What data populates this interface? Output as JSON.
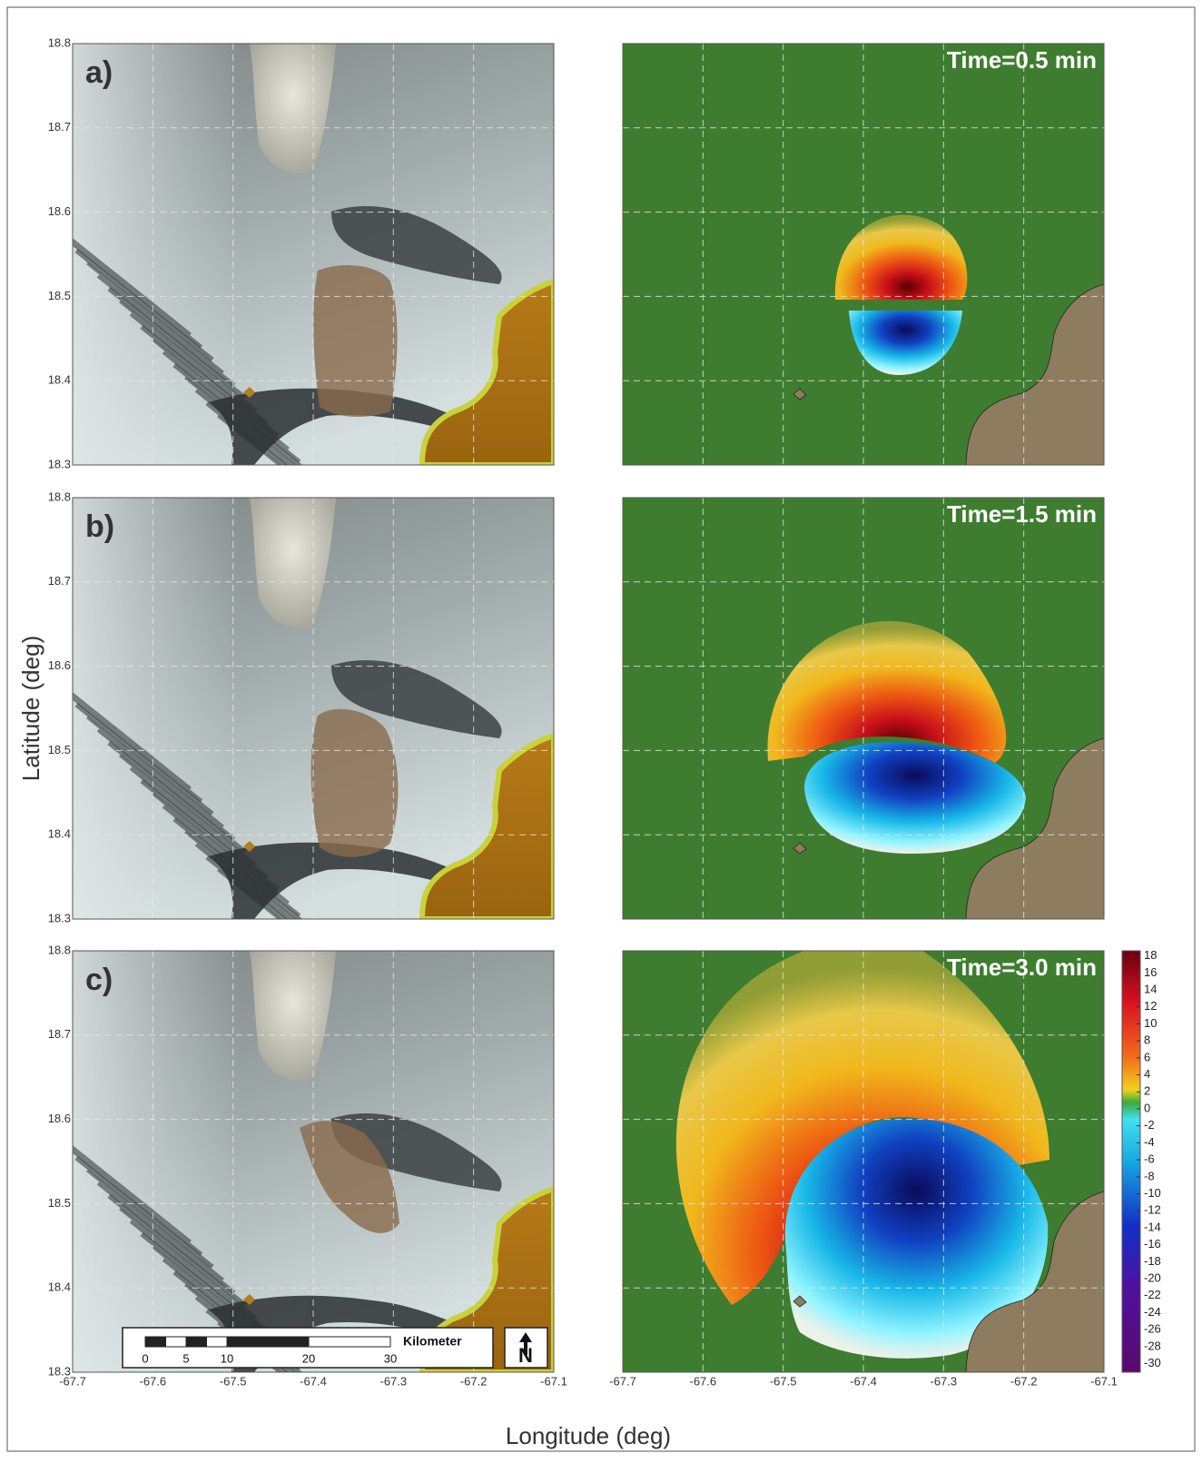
{
  "figure": {
    "ylabel": "Latitude (deg)",
    "xlabel": "Longitude (deg)"
  },
  "chart_data": [
    {
      "type": "terrain",
      "panel_label": "a)",
      "xlim": [
        -67.7,
        -67.1
      ],
      "ylim": [
        18.3,
        18.8
      ],
      "xticks": [
        -67.7,
        -67.6,
        -67.5,
        -67.4,
        -67.3,
        -67.2,
        -67.1
      ],
      "yticks": [
        18.3,
        18.4,
        18.5,
        18.6,
        18.7,
        18.8
      ],
      "grid": true,
      "xtick_labels": false,
      "ytick_labels": true
    },
    {
      "type": "wave",
      "time_label": "Time=0.5 min",
      "xlim": [
        -67.7,
        -67.1
      ],
      "ylim": [
        18.3,
        18.8
      ],
      "xticks": [
        -67.7,
        -67.6,
        -67.5,
        -67.4,
        -67.3,
        -67.2,
        -67.1
      ],
      "yticks": [
        18.3,
        18.4,
        18.5,
        18.6,
        18.7,
        18.8
      ],
      "grid": true,
      "xtick_labels": false,
      "ytick_labels": false
    },
    {
      "type": "terrain",
      "panel_label": "b)",
      "xlim": [
        -67.7,
        -67.1
      ],
      "ylim": [
        18.3,
        18.8
      ],
      "xticks": [
        -67.7,
        -67.6,
        -67.5,
        -67.4,
        -67.3,
        -67.2,
        -67.1
      ],
      "yticks": [
        18.3,
        18.4,
        18.5,
        18.6,
        18.7,
        18.8
      ],
      "grid": true,
      "xtick_labels": false,
      "ytick_labels": true
    },
    {
      "type": "wave",
      "time_label": "Time=1.5 min",
      "xlim": [
        -67.7,
        -67.1
      ],
      "ylim": [
        18.3,
        18.8
      ],
      "xticks": [
        -67.7,
        -67.6,
        -67.5,
        -67.4,
        -67.3,
        -67.2,
        -67.1
      ],
      "yticks": [
        18.3,
        18.4,
        18.5,
        18.6,
        18.7,
        18.8
      ],
      "grid": true,
      "xtick_labels": false,
      "ytick_labels": false
    },
    {
      "type": "terrain",
      "panel_label": "c)",
      "xlim": [
        -67.7,
        -67.1
      ],
      "ylim": [
        18.3,
        18.8
      ],
      "xticks": [
        -67.7,
        -67.6,
        -67.5,
        -67.4,
        -67.3,
        -67.2,
        -67.1
      ],
      "yticks": [
        18.3,
        18.4,
        18.5,
        18.6,
        18.7,
        18.8
      ],
      "grid": true,
      "xtick_labels": true,
      "ytick_labels": true,
      "scale_bar": {
        "ticks": [
          0,
          5,
          10,
          20,
          30
        ],
        "unit": "Kilometer"
      },
      "north": "N"
    },
    {
      "type": "wave",
      "time_label": "Time=3.0 min",
      "xlim": [
        -67.7,
        -67.1
      ],
      "ylim": [
        18.3,
        18.8
      ],
      "xticks": [
        -67.7,
        -67.6,
        -67.5,
        -67.4,
        -67.3,
        -67.2,
        -67.1
      ],
      "yticks": [
        18.3,
        18.4,
        18.5,
        18.6,
        18.7,
        18.8
      ],
      "grid": true,
      "xtick_labels": true,
      "ytick_labels": false,
      "colorbar": {
        "lim": [
          -31,
          18.6
        ],
        "ticks": [
          18,
          16,
          14,
          12,
          10,
          8,
          6,
          4,
          2,
          0,
          -2,
          -4,
          -6,
          -8,
          -10,
          -12,
          -14,
          -16,
          -18,
          -20,
          -22,
          -24,
          -26,
          -28,
          -30
        ]
      }
    }
  ]
}
